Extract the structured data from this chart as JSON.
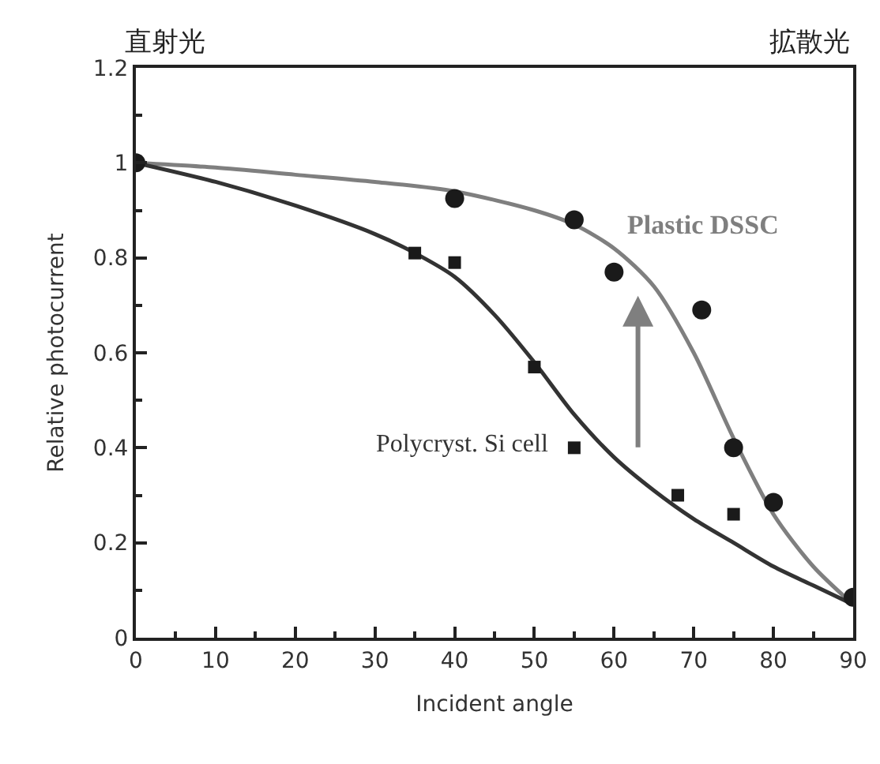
{
  "chart_data": {
    "type": "line",
    "xlabel": "Incident angle",
    "ylabel": "Relative photocurrent",
    "xlim": [
      0,
      90
    ],
    "xticks": [
      0,
      10,
      20,
      30,
      40,
      50,
      60,
      70,
      80,
      90
    ],
    "ylim": [
      0,
      1.2
    ],
    "yticks": [
      0,
      0.2,
      0.4,
      0.6,
      0.8,
      1,
      1.2
    ],
    "legend": false,
    "series": [
      {
        "color": "#7f7f7f",
        "marker": "none",
        "x": [
          0,
          10,
          20,
          30,
          40,
          50,
          55,
          60,
          65,
          70,
          75,
          80,
          85,
          90
        ],
        "values": [
          1,
          0.99,
          0.975,
          0.96,
          0.94,
          0.9,
          0.87,
          0.82,
          0.74,
          0.6,
          0.42,
          0.26,
          0.15,
          0.07
        ]
      },
      {
        "color": "#333333",
        "marker": "none",
        "x": [
          0,
          10,
          20,
          30,
          35,
          40,
          45,
          50,
          55,
          60,
          65,
          70,
          75,
          80,
          85,
          90
        ],
        "values": [
          1,
          0.96,
          0.91,
          0.85,
          0.81,
          0.76,
          0.68,
          0.58,
          0.47,
          0.38,
          0.31,
          0.25,
          0.2,
          0.15,
          0.11,
          0.07
        ]
      },
      {
        "type": "scatter",
        "color": "#1a1a1a",
        "marker": "circle",
        "x": [
          0,
          40,
          55,
          60,
          71,
          75,
          80,
          90
        ],
        "values": [
          1,
          0.925,
          0.88,
          0.77,
          0.69,
          0.4,
          0.285,
          0.085
        ]
      },
      {
        "type": "scatter",
        "color": "#1a1a1a",
        "marker": "square",
        "x": [
          35,
          40,
          50,
          55,
          68,
          75
        ],
        "values": [
          0.81,
          0.79,
          0.57,
          0.4,
          0.3,
          0.26
        ]
      }
    ],
    "annotations": [
      "直射光",
      "拡散光",
      "Plastic DSSC",
      "Polycryst. Si cell"
    ]
  }
}
